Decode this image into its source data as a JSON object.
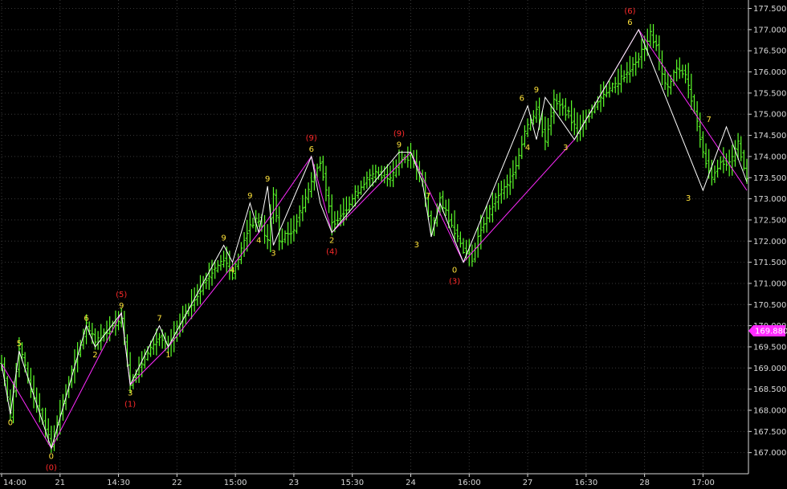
{
  "chart_data": {
    "type": "bar",
    "title": "",
    "xlabel": "",
    "ylabel": "",
    "ylim": [
      166.5,
      177.7
    ],
    "grid": true,
    "legend": "none",
    "colors": {
      "background": "#000000",
      "bars": "#5cff2a",
      "white_wave": "#ffffff",
      "magenta_wave": "#ff2aff",
      "yellow_label": "#ffe23a",
      "red_label": "#ff2a2a",
      "grid": "#3a3a3a",
      "axis_text": "#d8d8d8"
    },
    "y_ticks": [
      "167.000",
      "167.500",
      "168.000",
      "168.500",
      "169.000",
      "169.500",
      "170.000",
      "170.500",
      "171.000",
      "171.500",
      "172.000",
      "172.500",
      "173.000",
      "173.500",
      "174.000",
      "174.500",
      "175.000",
      "175.500",
      "176.000",
      "176.500",
      "177.000",
      "177.500"
    ],
    "y_tick_values": [
      167.0,
      167.5,
      168.0,
      168.5,
      169.0,
      169.5,
      170.0,
      170.5,
      171.0,
      171.5,
      172.0,
      172.5,
      173.0,
      173.5,
      174.0,
      174.5,
      175.0,
      175.5,
      176.0,
      176.5,
      177.0,
      177.5
    ],
    "x_ticks": [
      {
        "label": "14:00",
        "pos": 0
      },
      {
        "label": "21",
        "pos": 20
      },
      {
        "label": "14:30",
        "pos": 40
      },
      {
        "label": "22",
        "pos": 60
      },
      {
        "label": "15:00",
        "pos": 80
      },
      {
        "label": "23",
        "pos": 100
      },
      {
        "label": "15:30",
        "pos": 120
      },
      {
        "label": "24",
        "pos": 140
      },
      {
        "label": "16:00",
        "pos": 160
      },
      {
        "label": "27",
        "pos": 180
      },
      {
        "label": "16:30",
        "pos": 200
      },
      {
        "label": "28",
        "pos": 220
      },
      {
        "label": "17:00",
        "pos": 240
      }
    ],
    "x_max": 255,
    "current_price": {
      "label": "169.880",
      "value": 169.88
    },
    "anchors": [
      [
        0,
        169.1
      ],
      [
        3,
        167.9
      ],
      [
        6,
        169.5
      ],
      [
        10,
        168.5
      ],
      [
        17,
        167.2
      ],
      [
        24,
        168.9
      ],
      [
        29,
        170.0
      ],
      [
        32,
        169.6
      ],
      [
        35,
        169.8
      ],
      [
        41,
        170.2
      ],
      [
        44,
        168.6
      ],
      [
        50,
        169.4
      ],
      [
        54,
        169.7
      ],
      [
        57,
        169.5
      ],
      [
        62,
        170.2
      ],
      [
        70,
        171.1
      ],
      [
        76,
        171.6
      ],
      [
        79,
        171.2
      ],
      [
        85,
        172.4
      ],
      [
        88,
        172.5
      ],
      [
        91,
        172.0
      ],
      [
        93,
        173.1
      ],
      [
        95,
        172.0
      ],
      [
        100,
        172.3
      ],
      [
        106,
        173.4
      ],
      [
        109,
        173.9
      ],
      [
        113,
        172.4
      ],
      [
        117,
        172.7
      ],
      [
        124,
        173.4
      ],
      [
        128,
        173.6
      ],
      [
        133,
        173.5
      ],
      [
        136,
        173.9
      ],
      [
        140,
        174.0
      ],
      [
        144,
        173.4
      ],
      [
        147,
        172.2
      ],
      [
        150,
        173.0
      ],
      [
        154,
        172.4
      ],
      [
        158,
        171.8
      ],
      [
        161,
        171.6
      ],
      [
        164,
        172.3
      ],
      [
        170,
        173.1
      ],
      [
        173,
        173.3
      ],
      [
        176,
        173.8
      ],
      [
        179,
        174.6
      ],
      [
        183,
        175.1
      ],
      [
        186,
        174.4
      ],
      [
        189,
        175.3
      ],
      [
        194,
        175.0
      ],
      [
        197,
        174.6
      ],
      [
        200,
        174.9
      ],
      [
        203,
        175.2
      ],
      [
        206,
        175.5
      ],
      [
        210,
        175.7
      ],
      [
        214,
        176.0
      ],
      [
        217,
        176.2
      ],
      [
        220,
        176.6
      ],
      [
        222,
        176.9
      ],
      [
        224,
        176.6
      ],
      [
        226,
        175.9
      ],
      [
        228,
        175.6
      ],
      [
        231,
        176.1
      ],
      [
        234,
        175.9
      ],
      [
        237,
        175.1
      ],
      [
        240,
        174.1
      ],
      [
        243,
        173.5
      ],
      [
        246,
        173.9
      ],
      [
        249,
        173.8
      ],
      [
        252,
        174.3
      ],
      [
        255,
        173.5
      ]
    ],
    "white_wave": [
      [
        0,
        169.1
      ],
      [
        3,
        167.9
      ],
      [
        6,
        169.4
      ],
      [
        17,
        167.1
      ],
      [
        29,
        170.0
      ],
      [
        32,
        169.5
      ],
      [
        41,
        170.3
      ],
      [
        44,
        168.6
      ],
      [
        54,
        170.0
      ],
      [
        57,
        169.5
      ],
      [
        76,
        171.9
      ],
      [
        79,
        171.5
      ],
      [
        85,
        172.9
      ],
      [
        88,
        172.2
      ],
      [
        91,
        173.3
      ],
      [
        93,
        171.9
      ],
      [
        106,
        174.0
      ],
      [
        109,
        172.9
      ],
      [
        113,
        172.2
      ],
      [
        136,
        174.1
      ],
      [
        140,
        174.1
      ],
      [
        144,
        173.4
      ],
      [
        147,
        172.1
      ],
      [
        150,
        172.9
      ],
      [
        158,
        171.5
      ],
      [
        180,
        175.2
      ],
      [
        183,
        174.4
      ],
      [
        186,
        175.4
      ],
      [
        196,
        174.4
      ],
      [
        218,
        177.0
      ],
      [
        240,
        173.2
      ],
      [
        248,
        174.7
      ],
      [
        255,
        173.4
      ]
    ],
    "magenta_wave": [
      [
        0,
        169.1
      ],
      [
        17,
        167.1
      ],
      [
        41,
        170.3
      ],
      [
        44,
        168.6
      ],
      [
        57,
        169.5
      ],
      [
        88,
        172.2
      ],
      [
        106,
        174.0
      ],
      [
        113,
        172.2
      ],
      [
        140,
        174.1
      ],
      [
        158,
        171.5
      ],
      [
        196,
        174.4
      ],
      [
        218,
        177.0
      ],
      [
        255,
        173.2
      ]
    ],
    "wave_labels": [
      {
        "text": "0",
        "x": 3,
        "y": 167.9,
        "color": "yellow",
        "pos": "below"
      },
      {
        "text": "5",
        "x": 6,
        "y": 169.4,
        "color": "yellow",
        "pos": "above"
      },
      {
        "text": "0",
        "x": 17,
        "y": 167.1,
        "color": "yellow",
        "pos": "below"
      },
      {
        "text": "(0)",
        "x": 17,
        "y": 167.1,
        "color": "red",
        "pos": "below2"
      },
      {
        "text": "6",
        "x": 29,
        "y": 170.0,
        "color": "yellow",
        "pos": "above"
      },
      {
        "text": "2",
        "x": 32,
        "y": 169.5,
        "color": "yellow",
        "pos": "below"
      },
      {
        "text": "9",
        "x": 41,
        "y": 170.3,
        "color": "yellow",
        "pos": "above"
      },
      {
        "text": "(5)",
        "x": 41,
        "y": 170.3,
        "color": "red",
        "pos": "above2"
      },
      {
        "text": "3",
        "x": 44,
        "y": 168.6,
        "color": "yellow",
        "pos": "below"
      },
      {
        "text": "(1)",
        "x": 44,
        "y": 168.6,
        "color": "red",
        "pos": "below2"
      },
      {
        "text": "7",
        "x": 54,
        "y": 170.0,
        "color": "yellow",
        "pos": "above"
      },
      {
        "text": "1",
        "x": 57,
        "y": 169.5,
        "color": "yellow",
        "pos": "below"
      },
      {
        "text": "9",
        "x": 76,
        "y": 171.9,
        "color": "yellow",
        "pos": "above"
      },
      {
        "text": "4",
        "x": 79,
        "y": 171.5,
        "color": "yellow",
        "pos": "below"
      },
      {
        "text": "9",
        "x": 85,
        "y": 172.9,
        "color": "yellow",
        "pos": "above"
      },
      {
        "text": "4",
        "x": 88,
        "y": 172.2,
        "color": "yellow",
        "pos": "below"
      },
      {
        "text": "9",
        "x": 91,
        "y": 173.3,
        "color": "yellow",
        "pos": "above"
      },
      {
        "text": "3",
        "x": 93,
        "y": 171.9,
        "color": "yellow",
        "pos": "below"
      },
      {
        "text": "6",
        "x": 106,
        "y": 174.0,
        "color": "yellow",
        "pos": "above"
      },
      {
        "text": "(9)",
        "x": 106,
        "y": 174.0,
        "color": "red",
        "pos": "above2"
      },
      {
        "text": "2",
        "x": 113,
        "y": 172.2,
        "color": "yellow",
        "pos": "below"
      },
      {
        "text": "(4)",
        "x": 113,
        "y": 172.2,
        "color": "red",
        "pos": "below2"
      },
      {
        "text": "9",
        "x": 136,
        "y": 174.1,
        "color": "yellow",
        "pos": "above"
      },
      {
        "text": "(9)",
        "x": 136,
        "y": 174.1,
        "color": "red",
        "pos": "above2"
      },
      {
        "text": "3",
        "x": 142,
        "y": 172.1,
        "color": "yellow",
        "pos": "below"
      },
      {
        "text": "7",
        "x": 146,
        "y": 172.9,
        "color": "yellow",
        "pos": "above"
      },
      {
        "text": "0",
        "x": 155,
        "y": 171.5,
        "color": "yellow",
        "pos": "below"
      },
      {
        "text": "(3)",
        "x": 155,
        "y": 171.5,
        "color": "red",
        "pos": "below2"
      },
      {
        "text": "6",
        "x": 178,
        "y": 175.2,
        "color": "yellow",
        "pos": "above"
      },
      {
        "text": "4",
        "x": 180,
        "y": 174.4,
        "color": "yellow",
        "pos": "below"
      },
      {
        "text": "9",
        "x": 183,
        "y": 175.4,
        "color": "yellow",
        "pos": "above"
      },
      {
        "text": "3",
        "x": 193,
        "y": 174.4,
        "color": "yellow",
        "pos": "below"
      },
      {
        "text": "6",
        "x": 215,
        "y": 177.0,
        "color": "yellow",
        "pos": "above"
      },
      {
        "text": "(6)",
        "x": 215,
        "y": 177.0,
        "color": "red",
        "pos": "above2"
      },
      {
        "text": "3",
        "x": 235,
        "y": 173.2,
        "color": "yellow",
        "pos": "below"
      },
      {
        "text": "7",
        "x": 242,
        "y": 174.7,
        "color": "yellow",
        "pos": "above"
      }
    ]
  }
}
